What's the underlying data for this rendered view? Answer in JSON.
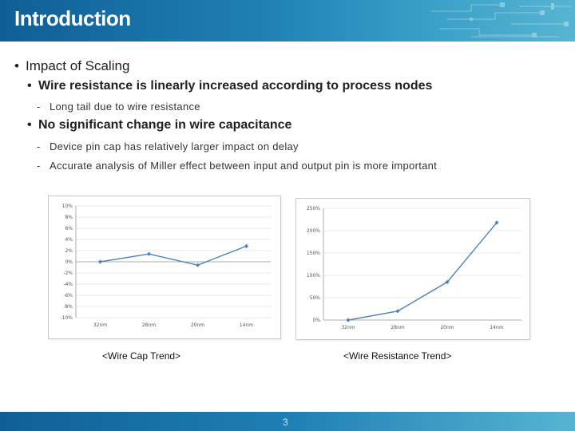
{
  "slide": {
    "title": "Introduction",
    "bullets": {
      "b1": "Impact of Scaling",
      "b2": "Wire resistance is linearly increased according to process nodes",
      "b2_sub": [
        "Long tail due to wire resistance"
      ],
      "b3": "No significant change in wire capacitance",
      "b3_sub": [
        "Device pin cap has relatively larger impact on delay",
        "Accurate analysis of Miller effect between input and output pin is more important"
      ]
    },
    "captions": [
      "<Wire Cap Trend>",
      "<Wire Resistance Trend>"
    ],
    "page_number": "3",
    "bullet_glyph": "•",
    "dash_glyph": "-",
    "colors": {
      "header": "#1f7fb4",
      "series": "#4f81bd"
    }
  },
  "chart_data": [
    {
      "type": "line",
      "categories": [
        "32nm",
        "28nm",
        "20nm",
        "14nm"
      ],
      "series": [
        {
          "values": [
            0,
            1.4,
            -0.6,
            2.8
          ]
        }
      ],
      "yticks": [
        "10%",
        "8%",
        "6%",
        "4%",
        "2%",
        "0%",
        "-2%",
        "-4%",
        "-6%",
        "-8%",
        "-10%"
      ],
      "ylim": [
        -10,
        10
      ],
      "grid": true
    },
    {
      "type": "line",
      "categories": [
        "32nm",
        "28nm",
        "20nm",
        "14nm"
      ],
      "series": [
        {
          "values": [
            0,
            20,
            85,
            218
          ]
        }
      ],
      "yticks": [
        "250%",
        "200%",
        "150%",
        "100%",
        "50%",
        "0%"
      ],
      "ylim": [
        0,
        250
      ],
      "grid": true
    }
  ]
}
